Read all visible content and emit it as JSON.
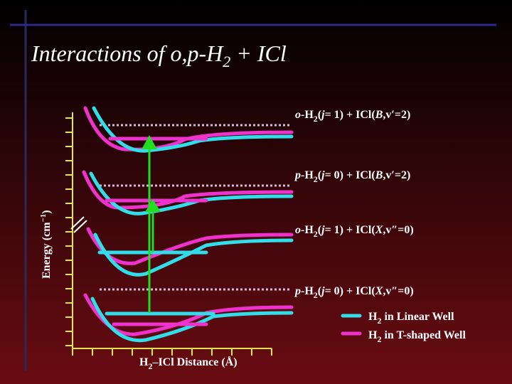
{
  "title": [
    "Interactions of o,p-H",
    "2",
    " + ICl"
  ],
  "levels": [
    [
      "o",
      "-H",
      "2",
      "(",
      "j",
      "= 1) + ICl(",
      "B",
      ",v′=2)"
    ],
    [
      "p",
      "-H",
      "2",
      "(",
      "j",
      "= 0) + ICl(",
      "B",
      ",v′=2)"
    ],
    [
      "o",
      "-H",
      "2",
      "(",
      "j",
      "= 1) + ICl(",
      "X",
      ",v″=0)"
    ],
    [
      "p",
      "-H",
      "2",
      "(",
      "j",
      "= 0) + ICl(",
      "X",
      ",v″=0)"
    ]
  ],
  "y_axis_label": [
    "Energy (cm",
    "−1",
    ")"
  ],
  "x_axis_label": [
    "H",
    "2",
    "–ICl Distance (Å)"
  ],
  "legend": [
    [
      "H",
      "2",
      " in Linear Well"
    ],
    [
      "H",
      "2",
      " in T-shaped Well"
    ]
  ]
}
